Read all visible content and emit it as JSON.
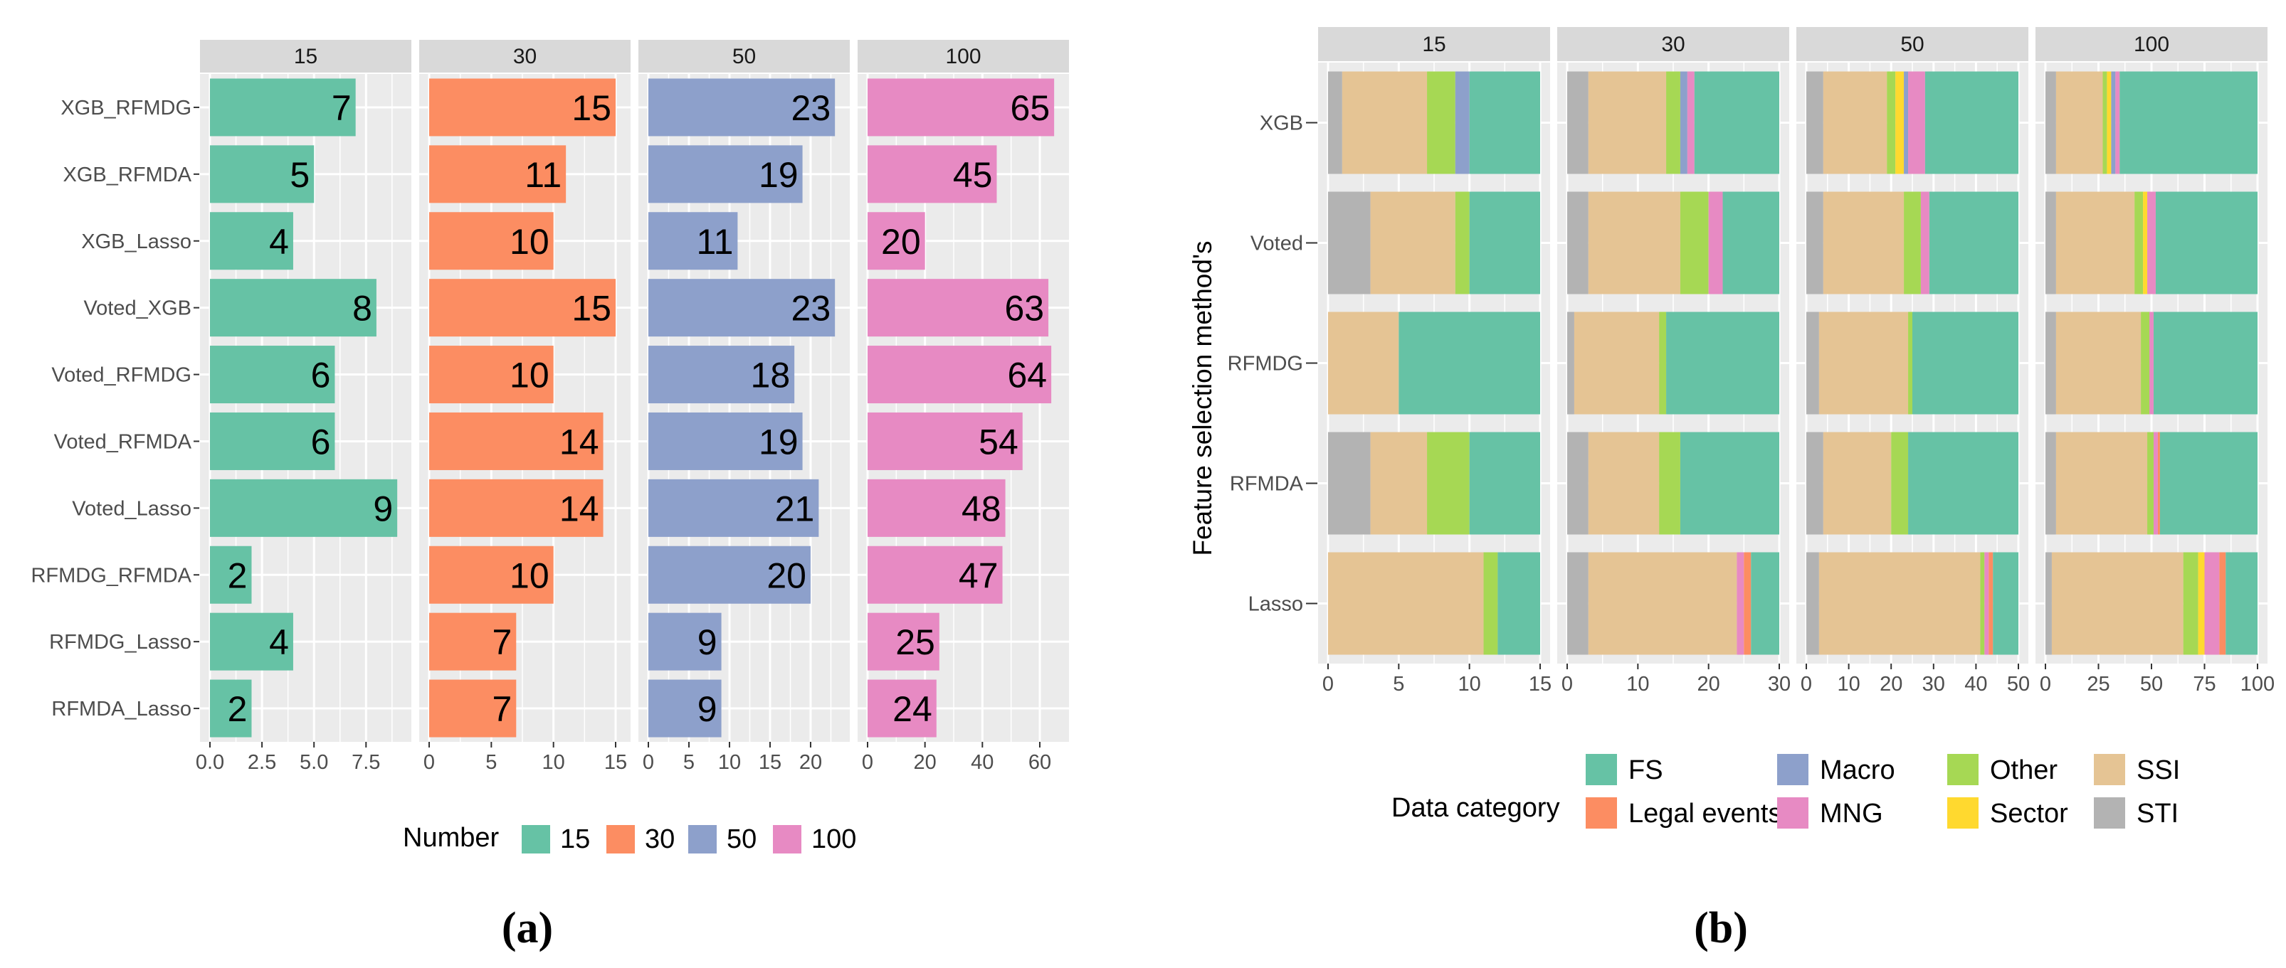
{
  "panel_a": {
    "caption": "(a)",
    "legend_title": "Number"
  },
  "panel_b": {
    "caption": "(b)",
    "ylabel": "Feature selection method's",
    "legend_title": "Data category"
  },
  "chart_data": [
    {
      "type": "bar",
      "orientation": "horizontal",
      "facets": [
        "15",
        "30",
        "50",
        "100"
      ],
      "categories": [
        "XGB_RFMDG",
        "XGB_RFMDA",
        "XGB_Lasso",
        "Voted_XGB",
        "Voted_RFMDG",
        "Voted_RFMDA",
        "Voted_Lasso",
        "RFMDG_RFMDA",
        "RFMDG_Lasso",
        "RFMDA_Lasso"
      ],
      "series": [
        {
          "name": "15",
          "color": "#66c2a5",
          "values": [
            7,
            5,
            4,
            8,
            6,
            6,
            9,
            2,
            4,
            2
          ],
          "xlim": [
            0,
            9.2
          ],
          "ticks": [
            "0.0",
            "2.5",
            "5.0",
            "7.5"
          ]
        },
        {
          "name": "30",
          "color": "#fc8d62",
          "values": [
            15,
            11,
            10,
            15,
            10,
            14,
            14,
            10,
            7,
            7
          ],
          "xlim": [
            0,
            15.4
          ],
          "ticks": [
            "0",
            "5",
            "10",
            "15"
          ]
        },
        {
          "name": "50",
          "color": "#8da0cb",
          "values": [
            23,
            19,
            11,
            23,
            18,
            19,
            21,
            20,
            9,
            9
          ],
          "xlim": [
            0,
            23.6
          ],
          "ticks": [
            "0",
            "5",
            "10",
            "15",
            "20"
          ]
        },
        {
          "name": "100",
          "color": "#e78ac3",
          "values": [
            65,
            45,
            20,
            63,
            64,
            54,
            48,
            47,
            25,
            24
          ],
          "xlim": [
            0,
            66.7
          ],
          "ticks": [
            "0",
            "20",
            "40",
            "60"
          ]
        }
      ],
      "legend": {
        "title": "Number",
        "entries": [
          "15",
          "30",
          "50",
          "100"
        ],
        "position": "bottom"
      }
    },
    {
      "type": "stacked-bar",
      "orientation": "horizontal",
      "facets": [
        "15",
        "30",
        "50",
        "100"
      ],
      "categories": [
        "XGB",
        "Voted",
        "RFMDG",
        "RFMDA",
        "Lasso"
      ],
      "ylabel": "Feature selection method's",
      "stack_order": [
        "STI",
        "SSI",
        "Other",
        "Sector",
        "Macro",
        "MNG",
        "Legal events",
        "FS"
      ],
      "categories_legend": [
        {
          "name": "FS",
          "color": "#66c2a5"
        },
        {
          "name": "Legal events",
          "color": "#fc8d62"
        },
        {
          "name": "Macro",
          "color": "#8da0cb"
        },
        {
          "name": "MNG",
          "color": "#e78ac3"
        },
        {
          "name": "Other",
          "color": "#a6d854"
        },
        {
          "name": "Sector",
          "color": "#ffd92f"
        },
        {
          "name": "SSI",
          "color": "#e5c494"
        },
        {
          "name": "STI",
          "color": "#b3b3b3"
        }
      ],
      "panels": [
        {
          "facet": "15",
          "xlim": [
            0,
            15
          ],
          "ticks": [
            "0",
            "5",
            "10",
            "15"
          ],
          "bars": {
            "XGB": {
              "STI": 1,
              "SSI": 6,
              "Other": 2,
              "Macro": 1,
              "FS": 5
            },
            "Voted": {
              "STI": 3,
              "SSI": 6,
              "Other": 1,
              "FS": 5
            },
            "RFMDG": {
              "SSI": 5,
              "FS": 10
            },
            "RFMDA": {
              "STI": 3,
              "SSI": 4,
              "Other": 3,
              "FS": 5
            },
            "Lasso": {
              "SSI": 11,
              "Other": 1,
              "FS": 3
            }
          }
        },
        {
          "facet": "30",
          "xlim": [
            0,
            30
          ],
          "ticks": [
            "0",
            "10",
            "20",
            "30"
          ],
          "bars": {
            "XGB": {
              "STI": 3,
              "SSI": 11,
              "Other": 2,
              "Macro": 1,
              "MNG": 1,
              "FS": 12
            },
            "Voted": {
              "STI": 3,
              "SSI": 13,
              "Other": 4,
              "MNG": 2,
              "FS": 8
            },
            "RFMDG": {
              "STI": 1,
              "SSI": 12,
              "Other": 1,
              "FS": 16
            },
            "RFMDA": {
              "STI": 3,
              "SSI": 10,
              "Other": 3,
              "FS": 14
            },
            "Lasso": {
              "STI": 3,
              "SSI": 21,
              "MNG": 1,
              "Legal events": 1,
              "FS": 4
            }
          }
        },
        {
          "facet": "50",
          "xlim": [
            0,
            50
          ],
          "ticks": [
            "0",
            "10",
            "20",
            "30",
            "40",
            "50"
          ],
          "bars": {
            "XGB": {
              "STI": 4,
              "SSI": 15,
              "Sector": 2,
              "Other": 2,
              "Macro": 1,
              "MNG": 4,
              "FS": 22
            },
            "Voted": {
              "STI": 4,
              "SSI": 19,
              "Other": 4,
              "MNG": 2,
              "FS": 21
            },
            "RFMDG": {
              "STI": 3,
              "SSI": 21,
              "Other": 1,
              "FS": 25
            },
            "RFMDA": {
              "STI": 4,
              "SSI": 16,
              "Other": 4,
              "FS": 26
            },
            "Lasso": {
              "STI": 3,
              "SSI": 38,
              "Other": 1,
              "Legal events": 1,
              "MNG": 1,
              "FS": 6
            }
          }
        },
        {
          "facet": "100",
          "xlim": [
            0,
            100
          ],
          "ticks": [
            "0",
            "25",
            "50",
            "75",
            "100"
          ],
          "bars": {
            "XGB": {
              "STI": 5,
              "SSI": 22,
              "Sector": 2,
              "Other": 2,
              "Macro": 2,
              "MNG": 2,
              "FS": 65
            },
            "Voted": {
              "STI": 5,
              "SSI": 37,
              "Sector": 2,
              "Other": 4,
              "MNG": 4,
              "FS": 48
            },
            "RFMDG": {
              "STI": 5,
              "SSI": 40,
              "Other": 4,
              "MNG": 2,
              "FS": 49
            },
            "RFMDA": {
              "STI": 5,
              "SSI": 43,
              "Other": 3,
              "MNG": 2,
              "Legal events": 1,
              "FS": 46
            },
            "Lasso": {
              "STI": 3,
              "SSI": 62,
              "Sector": 3,
              "Other": 7,
              "MNG": 7,
              "Legal events": 3,
              "FS": 15
            }
          }
        }
      ],
      "legend": {
        "title": "Data category",
        "position": "bottom"
      }
    }
  ]
}
